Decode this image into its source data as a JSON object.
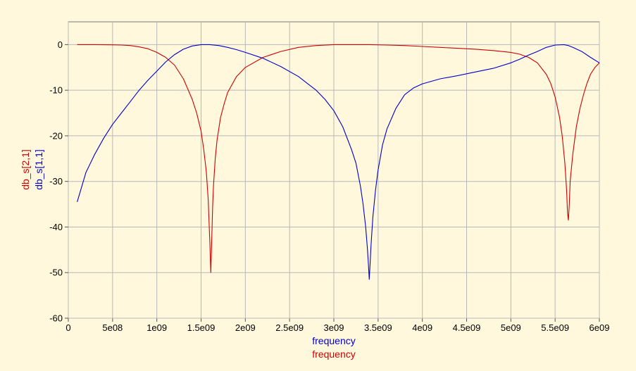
{
  "chart_data": {
    "type": "line",
    "xlabel": [
      "frequency",
      "frequency"
    ],
    "ylabel": [
      "db_s[2,1]",
      "db_s[1,1]"
    ],
    "xlim": [
      0,
      6000000000
    ],
    "ylim": [
      -60,
      5
    ],
    "grid": true,
    "x_ticks": [
      0,
      500000000,
      1000000000,
      1500000000,
      2000000000,
      2500000000,
      3000000000,
      3500000000,
      4000000000,
      4500000000,
      5000000000,
      5500000000,
      6000000000
    ],
    "x_tick_labels": [
      "0",
      "5e08",
      "1e09",
      "1.5e09",
      "2e09",
      "2.5e09",
      "3e09",
      "3.5e09",
      "4e09",
      "4.5e09",
      "5e09",
      "5.5e09",
      "6e09"
    ],
    "y_ticks": [
      0,
      -10,
      -20,
      -30,
      -40,
      -50,
      -60
    ],
    "y_tick_labels": [
      "0",
      "-10",
      "-20",
      "-30",
      "-40",
      "-50",
      "-60"
    ],
    "series": [
      {
        "name": "db_s[2,1]",
        "color": "#cc0000",
        "x": [
          100000000,
          300000000,
          500000000,
          600000000,
          700000000,
          800000000,
          900000000,
          1000000000,
          1100000000,
          1200000000,
          1300000000,
          1400000000,
          1450000000,
          1500000000,
          1530000000,
          1560000000,
          1580000000,
          1600000000,
          1610000000,
          1620000000,
          1630000000,
          1640000000,
          1660000000,
          1680000000,
          1720000000,
          1760000000,
          1800000000,
          1900000000,
          2000000000,
          2200000000,
          2400000000,
          2600000000,
          2800000000,
          3000000000,
          3200000000,
          3400000000,
          3600000000,
          3800000000,
          4000000000,
          4200000000,
          4400000000,
          4600000000,
          4800000000,
          5000000000,
          5100000000,
          5200000000,
          5300000000,
          5400000000,
          5450000000,
          5500000000,
          5550000000,
          5580000000,
          5610000000,
          5630000000,
          5640000000,
          5650000000,
          5660000000,
          5670000000,
          5700000000,
          5740000000,
          5780000000,
          5820000000,
          5860000000,
          5900000000,
          5950000000,
          6000000000
        ],
        "y": [
          0,
          0,
          -0.05,
          -0.1,
          -0.2,
          -0.5,
          -0.9,
          -1.7,
          -2.8,
          -4.5,
          -7.5,
          -12,
          -15,
          -19,
          -23,
          -28,
          -34,
          -44,
          -50,
          -43,
          -36,
          -31,
          -25,
          -21,
          -16,
          -13,
          -10.5,
          -7,
          -5,
          -2.8,
          -1.5,
          -0.6,
          -0.2,
          0,
          0,
          0,
          -0.1,
          -0.2,
          -0.4,
          -0.6,
          -0.8,
          -1,
          -1.3,
          -1.7,
          -2.1,
          -2.8,
          -4,
          -6.5,
          -8.5,
          -11.5,
          -16,
          -20,
          -26,
          -32,
          -37,
          -38.5,
          -35,
          -30,
          -24,
          -18,
          -14,
          -11,
          -8.5,
          -6.5,
          -5,
          -4
        ]
      },
      {
        "name": "db_s[1,1]",
        "color": "#0000cc",
        "x": [
          100000000,
          200000000,
          300000000,
          400000000,
          500000000,
          600000000,
          700000000,
          800000000,
          900000000,
          1000000000,
          1100000000,
          1200000000,
          1300000000,
          1400000000,
          1500000000,
          1600000000,
          1700000000,
          1800000000,
          1900000000,
          2000000000,
          2200000000,
          2400000000,
          2600000000,
          2800000000,
          2900000000,
          3000000000,
          3100000000,
          3200000000,
          3250000000,
          3300000000,
          3330000000,
          3360000000,
          3380000000,
          3390000000,
          3400000000,
          3410000000,
          3420000000,
          3440000000,
          3470000000,
          3500000000,
          3550000000,
          3600000000,
          3700000000,
          3800000000,
          3900000000,
          4000000000,
          4200000000,
          4400000000,
          4600000000,
          4800000000,
          5000000000,
          5100000000,
          5200000000,
          5300000000,
          5400000000,
          5500000000,
          5600000000,
          5650000000,
          5700000000,
          5800000000,
          5900000000,
          6000000000
        ],
        "y": [
          -34.5,
          -28,
          -24,
          -20.5,
          -17.5,
          -15,
          -12.5,
          -10,
          -7.8,
          -5.8,
          -3.8,
          -2.2,
          -1,
          -0.3,
          0,
          0,
          -0.2,
          -0.6,
          -1.1,
          -1.7,
          -3,
          -4.8,
          -7,
          -10,
          -12,
          -14.5,
          -18,
          -23,
          -26,
          -31,
          -35,
          -40,
          -45,
          -48,
          -51.5,
          -48,
          -44,
          -38,
          -32,
          -27.5,
          -22,
          -18.5,
          -14,
          -11,
          -9.5,
          -8.6,
          -7.5,
          -6.8,
          -6,
          -5.2,
          -4,
          -3.2,
          -2.3,
          -1.5,
          -0.6,
          -0.1,
          0,
          -0.2,
          -0.6,
          -1.5,
          -2.8,
          -4
        ]
      }
    ]
  }
}
